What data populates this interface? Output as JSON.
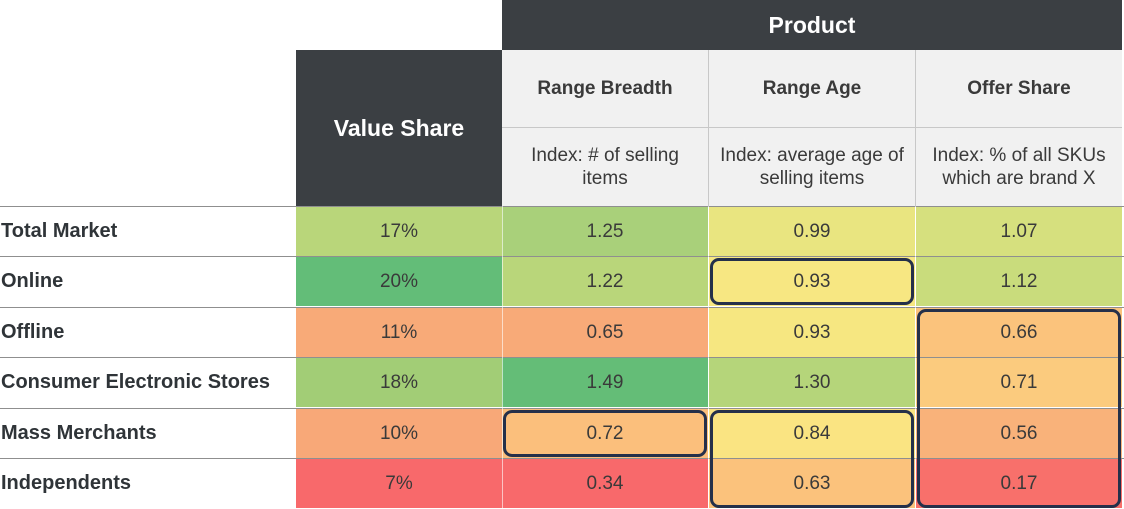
{
  "table": {
    "group_header": "Product",
    "value_share_header": "Value Share",
    "columns": [
      {
        "title": "Range Breadth",
        "subtitle": "Index: # of selling items"
      },
      {
        "title": "Range Age",
        "subtitle": "Index: average age of selling items"
      },
      {
        "title": "Offer Share",
        "subtitle": "Index: % of all SKUs which are brand X"
      }
    ]
  },
  "chart_data": {
    "type": "table",
    "title": "",
    "row_labels": [
      "Total Market",
      "Online",
      "Offline",
      "Consumer Electronic Stores",
      "Mass Merchants",
      "Independents"
    ],
    "column_labels": [
      "Value Share",
      "Range Breadth",
      "Range Age",
      "Offer Share"
    ],
    "values_display": [
      [
        "17%",
        "1.25",
        "0.99",
        "1.07"
      ],
      [
        "20%",
        "1.22",
        "0.93",
        "1.12"
      ],
      [
        "11%",
        "0.65",
        "0.93",
        "0.66"
      ],
      [
        "18%",
        "1.49",
        "1.30",
        "0.71"
      ],
      [
        "10%",
        "0.72",
        "0.84",
        "0.56"
      ],
      [
        "7%",
        "0.34",
        "0.63",
        "0.17"
      ]
    ],
    "values": [
      [
        17,
        1.25,
        0.99,
        1.07
      ],
      [
        20,
        1.22,
        0.93,
        1.12
      ],
      [
        11,
        0.65,
        0.93,
        0.66
      ],
      [
        18,
        1.49,
        1.3,
        0.71
      ],
      [
        10,
        0.72,
        0.84,
        0.56
      ],
      [
        7,
        0.34,
        0.63,
        0.17
      ]
    ],
    "cell_colors": [
      [
        "#b9d67a",
        "#a9d07a",
        "#e9e580",
        "#d6e07e"
      ],
      [
        "#63bd78",
        "#b9d67a",
        "#f7e782",
        "#c9dc7c"
      ],
      [
        "#f8aa78",
        "#f8aa78",
        "#f6e781",
        "#fbc37c"
      ],
      [
        "#a2cd76",
        "#64bd77",
        "#b5d57a",
        "#fbcb7e"
      ],
      [
        "#f8a878",
        "#fbbf7c",
        "#fae482",
        "#f9b27a"
      ],
      [
        "#f8696b",
        "#f8696b",
        "#fbc27c",
        "#f8706b"
      ]
    ],
    "highlighted_cells": [
      {
        "row": 1,
        "col": 2
      },
      {
        "row": 4,
        "col": 1
      },
      {
        "row": 4,
        "col": 2,
        "rows": 2
      },
      {
        "row": 2,
        "col": 3,
        "rows": 4
      }
    ],
    "highlight_color": "#25304a"
  }
}
